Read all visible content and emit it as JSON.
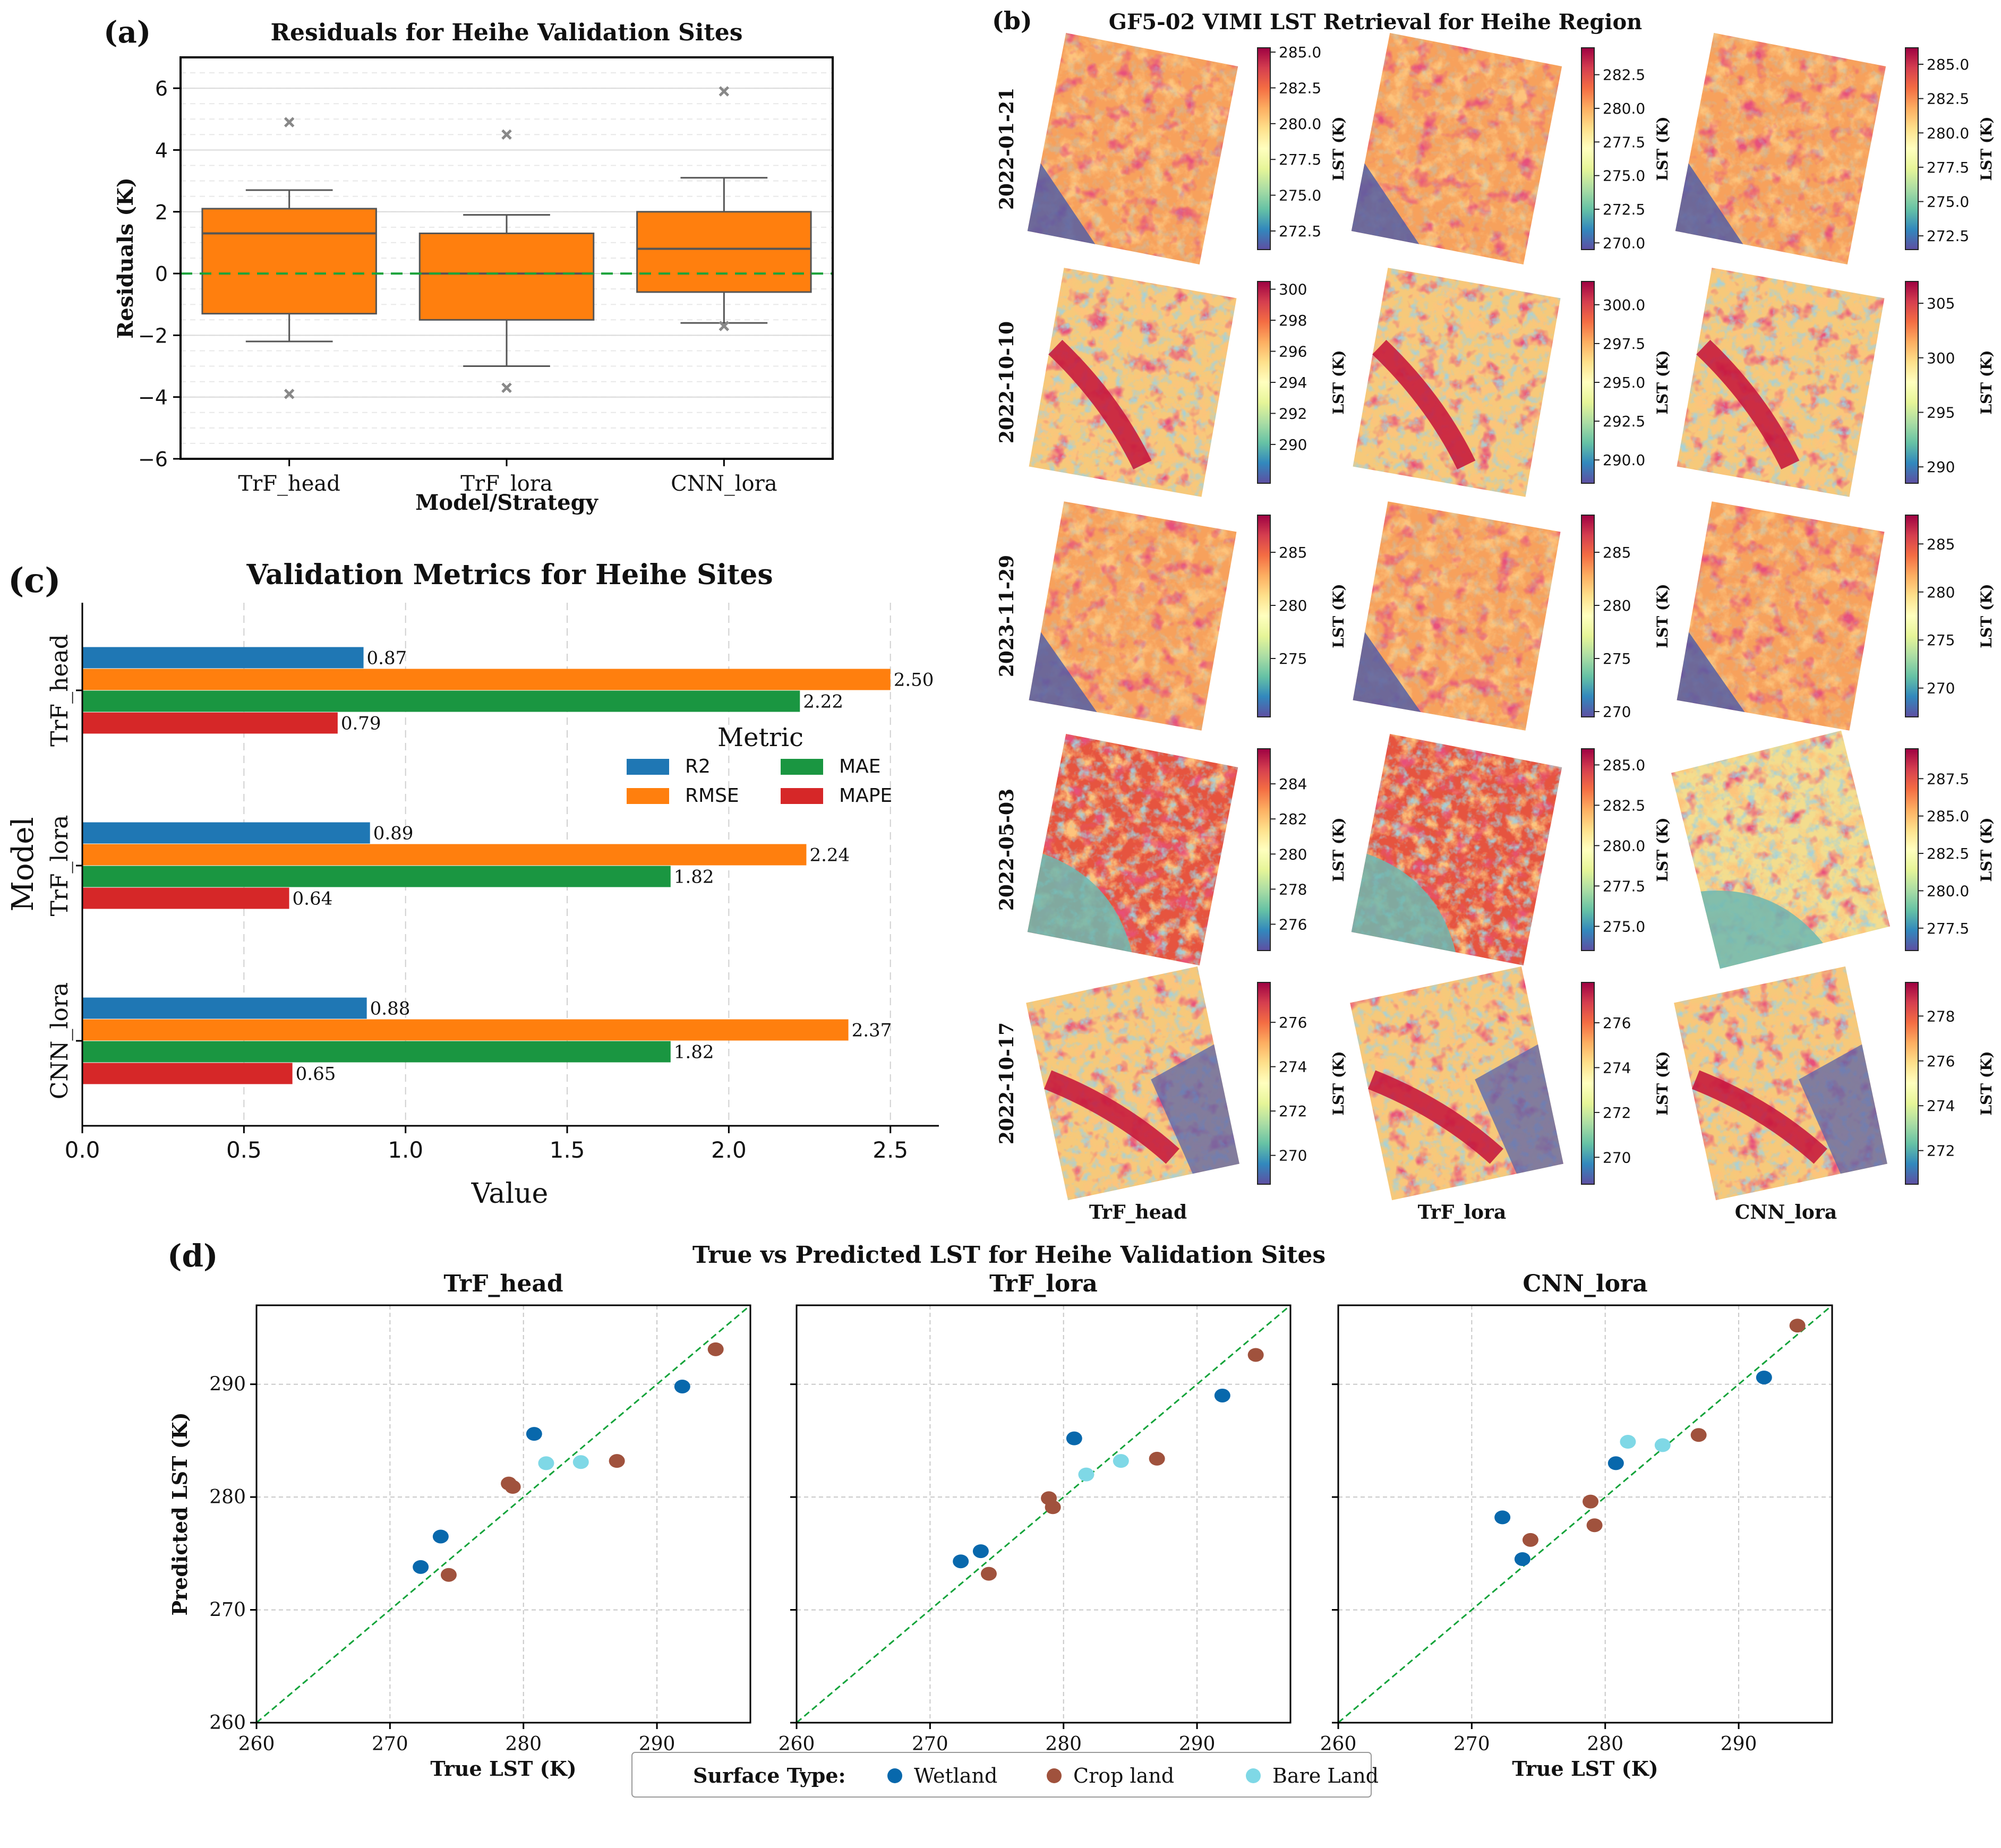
{
  "colors": {
    "orange": "#ff7f0e",
    "blue": "#1f77b4",
    "green": "#2ca02c",
    "red": "#d62728",
    "wetland": "#0868ac",
    "cropland": "#a0523d",
    "bareland": "#7fd8e6",
    "guide": "#11a33a",
    "boxgray": "#555555"
  },
  "panels": {
    "a": {
      "label": "(a)"
    },
    "b": {
      "label": "(b)",
      "title": "GF5-02 VIMI LST Retrieval for Heihe Region"
    },
    "c": {
      "label": "(c)"
    },
    "d": {
      "label": "(d)",
      "title": "True vs Predicted LST for Heihe Validation Sites"
    }
  },
  "chart_data": [
    {
      "id": "a",
      "type": "box",
      "title": "Residuals for Heihe Validation Sites",
      "xlabel": "Model/Strategy",
      "ylabel": "Residuals (K)",
      "ylim": [
        -6,
        7
      ],
      "yticks": [
        -6,
        -4,
        -2,
        0,
        2,
        4,
        6
      ],
      "reference_line": 0,
      "categories": [
        "TrF_head",
        "TrF_lora",
        "CNN_lora"
      ],
      "boxes": [
        {
          "name": "TrF_head",
          "q1": -1.3,
          "median": 1.3,
          "q3": 2.1,
          "whisker_low": -2.2,
          "whisker_high": 2.7,
          "outliers": [
            4.9,
            -3.9
          ]
        },
        {
          "name": "TrF_lora",
          "q1": -1.5,
          "median": 0.0,
          "q3": 1.3,
          "whisker_low": -3.0,
          "whisker_high": 1.9,
          "outliers": [
            4.5,
            -3.7
          ]
        },
        {
          "name": "CNN_lora",
          "q1": -0.6,
          "median": 0.8,
          "q3": 2.0,
          "whisker_low": -1.6,
          "whisker_high": 3.1,
          "outliers": [
            5.9,
            -1.7
          ]
        }
      ]
    },
    {
      "id": "b",
      "type": "heatmap-grid",
      "title": "GF5-02 VIMI LST Retrieval for Heihe Region",
      "columns": [
        "TrF_head",
        "TrF_lora",
        "CNN_lora"
      ],
      "colorbar_label": "LST (K)",
      "rows": [
        {
          "date": "2022-01-21",
          "colorbars": [
            {
              "range": [
                271.2,
                285.3
              ],
              "ticks": [
                "272.5",
                "275.0",
                "277.5",
                "280.0",
                "282.5",
                "285.0"
              ]
            },
            {
              "range": [
                269.5,
                284.5
              ],
              "ticks": [
                "270.0",
                "272.5",
                "275.0",
                "277.5",
                "280.0",
                "282.5"
              ]
            },
            {
              "range": [
                271.5,
                286.2
              ],
              "ticks": [
                "272.5",
                "275.0",
                "277.5",
                "280.0",
                "282.5",
                "285.0"
              ]
            }
          ]
        },
        {
          "date": "2022-10-10",
          "colorbars": [
            {
              "range": [
                287.5,
                300.5
              ],
              "ticks": [
                "290",
                "292",
                "294",
                "296",
                "298",
                "300"
              ]
            },
            {
              "range": [
                288.5,
                301.5
              ],
              "ticks": [
                "290.0",
                "292.5",
                "295.0",
                "297.5",
                "300.0"
              ]
            },
            {
              "range": [
                288.5,
                307.0
              ],
              "ticks": [
                "290",
                "295",
                "300",
                "305"
              ]
            }
          ]
        },
        {
          "date": "2023-11-29",
          "colorbars": [
            {
              "range": [
                269.5,
                288.5
              ],
              "ticks": [
                "275",
                "280",
                "285"
              ]
            },
            {
              "range": [
                269.5,
                288.5
              ],
              "ticks": [
                "270",
                "275",
                "280",
                "285"
              ]
            },
            {
              "range": [
                267.0,
                288.0
              ],
              "ticks": [
                "270",
                "275",
                "280",
                "285"
              ]
            }
          ]
        },
        {
          "date": "2022-05-03",
          "colorbars": [
            {
              "range": [
                274.5,
                286.0
              ],
              "ticks": [
                "276",
                "278",
                "280",
                "282",
                "284"
              ]
            },
            {
              "range": [
                273.5,
                286.0
              ],
              "ticks": [
                "275.0",
                "277.5",
                "280.0",
                "282.5",
                "285.0"
              ]
            },
            {
              "range": [
                276.0,
                289.5
              ],
              "ticks": [
                "277.5",
                "280.0",
                "282.5",
                "285.0",
                "287.5"
              ]
            }
          ]
        },
        {
          "date": "2022-10-17",
          "colorbars": [
            {
              "range": [
                268.7,
                277.8
              ],
              "ticks": [
                "270",
                "272",
                "274",
                "276"
              ]
            },
            {
              "range": [
                268.8,
                277.8
              ],
              "ticks": [
                "270",
                "272",
                "274",
                "276"
              ]
            },
            {
              "range": [
                270.5,
                279.5
              ],
              "ticks": [
                "272",
                "274",
                "276",
                "278"
              ]
            }
          ]
        }
      ]
    },
    {
      "id": "c",
      "type": "bar",
      "orientation": "horizontal",
      "title": "Validation Metrics for Heihe Sites",
      "xlabel": "Value",
      "ylabel": "Model",
      "xlim": [
        0,
        2.65
      ],
      "xticks": [
        "0.0",
        "0.5",
        "1.0",
        "1.5",
        "2.0",
        "2.5"
      ],
      "categories": [
        "TrF_head",
        "TrF_lora",
        "CNN_lora"
      ],
      "legend_title": "Metric",
      "series": [
        {
          "name": "R2",
          "color": "#1f77b4",
          "values": [
            0.87,
            0.89,
            0.88
          ],
          "labels": [
            "0.87",
            "0.89",
            "0.88"
          ]
        },
        {
          "name": "RMSE",
          "color": "#ff7f0e",
          "values": [
            2.5,
            2.24,
            2.37
          ],
          "labels": [
            "2.50",
            "2.24",
            "2.37"
          ]
        },
        {
          "name": "MAE",
          "color": "#1a9641",
          "values": [
            2.22,
            1.82,
            1.82
          ],
          "labels": [
            "2.22",
            "1.82",
            "1.82"
          ]
        },
        {
          "name": "MAPE",
          "color": "#d62728",
          "values": [
            0.79,
            0.64,
            0.65
          ],
          "labels": [
            "0.79",
            "0.64",
            "0.65"
          ]
        }
      ]
    },
    {
      "id": "d",
      "type": "scatter",
      "title": "True vs Predicted LST for Heihe Validation Sites",
      "xlabel": "True LST (K)",
      "ylabel": "Predicted LST (K)",
      "xlim": [
        260,
        297
      ],
      "ylim": [
        260,
        297
      ],
      "ticks": [
        "260",
        "270",
        "280",
        "290"
      ],
      "legend_title": "Surface Type:",
      "legend": [
        "Wetland",
        "Crop land",
        "Bare Land"
      ],
      "subplots": [
        {
          "title": "TrF_head",
          "points": [
            {
              "t": "Wetland",
              "x": 272.3,
              "y": 273.8
            },
            {
              "t": "Wetland",
              "x": 273.8,
              "y": 276.5
            },
            {
              "t": "Wetland",
              "x": 280.8,
              "y": 285.6
            },
            {
              "t": "Wetland",
              "x": 291.9,
              "y": 289.8
            },
            {
              "t": "Crop land",
              "x": 274.4,
              "y": 273.1
            },
            {
              "t": "Crop land",
              "x": 278.9,
              "y": 281.2
            },
            {
              "t": "Crop land",
              "x": 279.2,
              "y": 280.9
            },
            {
              "t": "Crop land",
              "x": 287.0,
              "y": 283.2
            },
            {
              "t": "Crop land",
              "x": 294.4,
              "y": 293.1
            },
            {
              "t": "Bare Land",
              "x": 281.7,
              "y": 283.0
            },
            {
              "t": "Bare Land",
              "x": 284.3,
              "y": 283.1
            }
          ]
        },
        {
          "title": "TrF_lora",
          "points": [
            {
              "t": "Wetland",
              "x": 272.3,
              "y": 274.3
            },
            {
              "t": "Wetland",
              "x": 273.8,
              "y": 275.2
            },
            {
              "t": "Wetland",
              "x": 280.8,
              "y": 285.2
            },
            {
              "t": "Wetland",
              "x": 291.9,
              "y": 289.0
            },
            {
              "t": "Crop land",
              "x": 274.4,
              "y": 273.2
            },
            {
              "t": "Crop land",
              "x": 278.9,
              "y": 279.9
            },
            {
              "t": "Crop land",
              "x": 279.2,
              "y": 279.1
            },
            {
              "t": "Crop land",
              "x": 287.0,
              "y": 283.4
            },
            {
              "t": "Crop land",
              "x": 294.4,
              "y": 292.6
            },
            {
              "t": "Bare Land",
              "x": 281.7,
              "y": 282.0
            },
            {
              "t": "Bare Land",
              "x": 284.3,
              "y": 283.2
            }
          ]
        },
        {
          "title": "CNN_lora",
          "points": [
            {
              "t": "Wetland",
              "x": 272.3,
              "y": 278.2
            },
            {
              "t": "Wetland",
              "x": 273.8,
              "y": 274.5
            },
            {
              "t": "Wetland",
              "x": 280.8,
              "y": 283.0
            },
            {
              "t": "Wetland",
              "x": 291.9,
              "y": 290.6
            },
            {
              "t": "Crop land",
              "x": 274.4,
              "y": 276.2
            },
            {
              "t": "Crop land",
              "x": 278.9,
              "y": 279.6
            },
            {
              "t": "Crop land",
              "x": 279.2,
              "y": 277.5
            },
            {
              "t": "Crop land",
              "x": 287.0,
              "y": 285.5
            },
            {
              "t": "Crop land",
              "x": 294.4,
              "y": 295.2
            },
            {
              "t": "Bare Land",
              "x": 281.7,
              "y": 284.9
            },
            {
              "t": "Bare Land",
              "x": 284.3,
              "y": 284.6
            }
          ]
        }
      ]
    }
  ]
}
